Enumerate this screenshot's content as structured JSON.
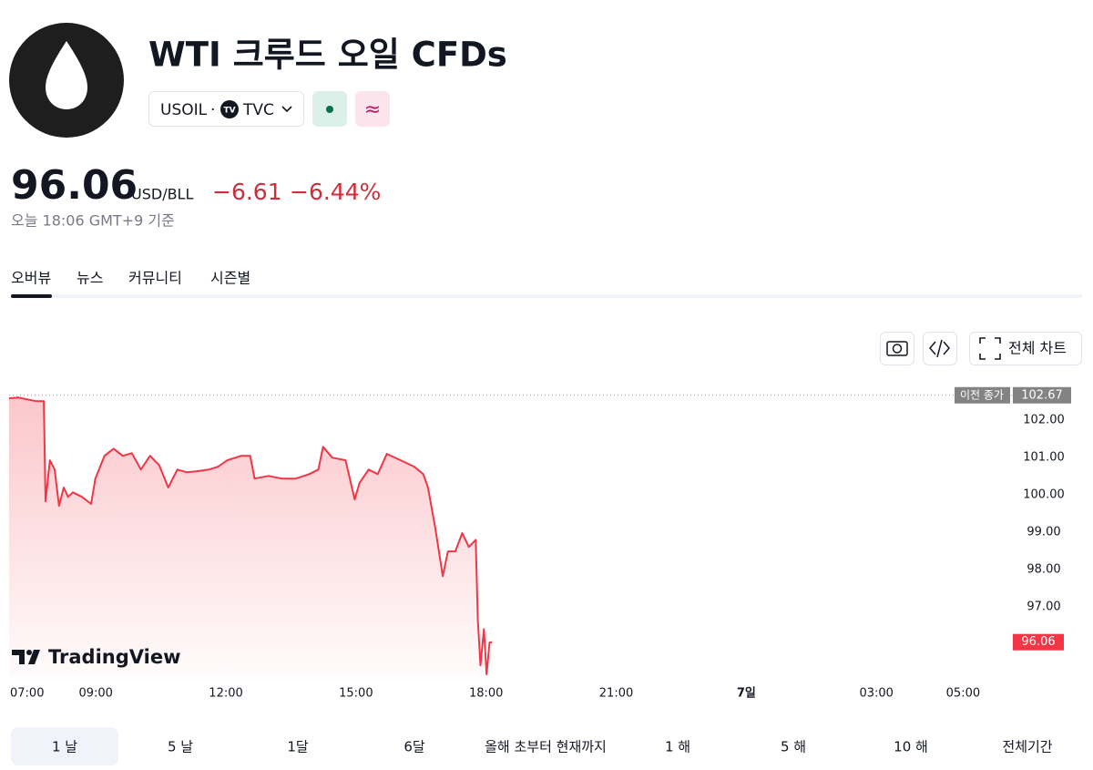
{
  "header": {
    "title": "WTI 크루드 오일 CFDs",
    "symbol": "USOIL",
    "separator": "·",
    "exchange": "TVC",
    "badge": "≈",
    "price": "96.06",
    "currency": "USD/BLL",
    "change": "−6.61",
    "change_percent": "−6.44%",
    "timestamp": "오늘 18:06 GMT+9 기준"
  },
  "tabs": [
    "오버뷰",
    "뉴스",
    "커뮤니티",
    "시즌별"
  ],
  "toolbar": {
    "fullscreen": "전체 차트"
  },
  "chart_data": {
    "type": "line",
    "color": "#f23645",
    "x": [
      7.0,
      7.21,
      7.42,
      7.63,
      7.8,
      7.84,
      7.94,
      8.05,
      8.15,
      8.26,
      8.36,
      8.47,
      8.68,
      8.89,
      8.99,
      9.2,
      9.41,
      9.62,
      9.83,
      10.04,
      10.25,
      10.46,
      10.67,
      10.88,
      11.09,
      11.3,
      11.61,
      11.82,
      12.03,
      12.35,
      12.56,
      12.66,
      12.98,
      13.29,
      13.61,
      13.92,
      14.13,
      14.24,
      14.45,
      14.76,
      14.97,
      15.08,
      15.29,
      15.5,
      15.71,
      16.03,
      16.34,
      16.55,
      16.66,
      16.83,
      17.0,
      17.12,
      17.29,
      17.45,
      17.6,
      17.76,
      17.81,
      17.87,
      17.95,
      18.01,
      18.08,
      18.14
    ],
    "values": [
      102.59,
      102.61,
      102.56,
      102.51,
      102.51,
      99.83,
      100.93,
      100.68,
      99.71,
      100.2,
      99.95,
      100.07,
      99.95,
      99.76,
      100.44,
      101.05,
      101.24,
      101.05,
      101.12,
      100.68,
      101.05,
      100.8,
      100.2,
      100.68,
      100.61,
      100.63,
      100.68,
      100.76,
      100.93,
      101.05,
      101.05,
      100.44,
      100.51,
      100.44,
      100.44,
      100.56,
      100.68,
      101.29,
      101.0,
      100.93,
      99.88,
      100.32,
      100.68,
      100.56,
      101.1,
      100.93,
      100.76,
      100.56,
      100.2,
      99.1,
      97.83,
      98.49,
      98.49,
      98.98,
      98.61,
      98.8,
      96.66,
      95.44,
      96.41,
      95.2,
      96.05,
      96.06
    ],
    "xlim": [
      7,
      30
    ],
    "xticks": [
      {
        "value": 7,
        "label": "07:00"
      },
      {
        "value": 9,
        "label": "09:00"
      },
      {
        "value": 12,
        "label": "12:00"
      },
      {
        "value": 15,
        "label": "15:00"
      },
      {
        "value": 18,
        "label": "18:00"
      },
      {
        "value": 21,
        "label": "21:00"
      },
      {
        "value": 24,
        "label": "7일"
      },
      {
        "value": 27,
        "label": "03:00"
      },
      {
        "value": 29,
        "label": "05:00"
      }
    ],
    "ylim": [
      95.15,
      103.25
    ],
    "yticks": [
      {
        "value": 102,
        "label": "102.00"
      },
      {
        "value": 101,
        "label": "101.00"
      },
      {
        "value": 100,
        "label": "100.00"
      },
      {
        "value": 99,
        "label": "99.00"
      },
      {
        "value": 98,
        "label": "98.00"
      },
      {
        "value": 97,
        "label": "97.00"
      }
    ],
    "reference_line": {
      "label": "이전 종가",
      "value": 102.67
    },
    "last_value": 96.06,
    "watermark": "TradingView"
  },
  "ranges": [
    "1 날",
    "5 날",
    "1달",
    "6달",
    "올해 초부터 현재까지",
    "1 해",
    "5 해",
    "10 해",
    "전체기간"
  ],
  "selected_range": 0
}
